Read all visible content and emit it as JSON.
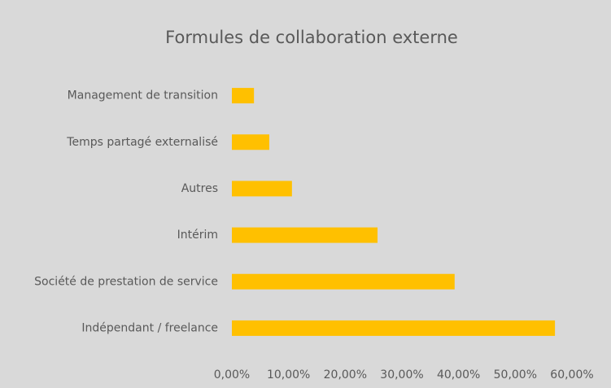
{
  "chart_data": {
    "type": "bar",
    "orientation": "horizontal",
    "title": "Formules de collaboration externe",
    "categories": [
      "Management de transition",
      "Temps partagé externalisé",
      "Autres",
      "Intérim",
      "Société de prestation de service",
      "Indépendant / freelance"
    ],
    "values": [
      3.9,
      6.6,
      10.6,
      25.7,
      39.3,
      57.0
    ],
    "color": "#ffc000",
    "xlim": [
      0,
      60
    ],
    "xticks": [
      {
        "value": 0,
        "label": "0,00%"
      },
      {
        "value": 10,
        "label": "10,00%"
      },
      {
        "value": 20,
        "label": "20,00%"
      },
      {
        "value": 30,
        "label": "30,00%"
      },
      {
        "value": 40,
        "label": "40,00%"
      },
      {
        "value": 50,
        "label": "50,00%"
      },
      {
        "value": 60,
        "label": "60,00%"
      }
    ],
    "grid": false
  }
}
